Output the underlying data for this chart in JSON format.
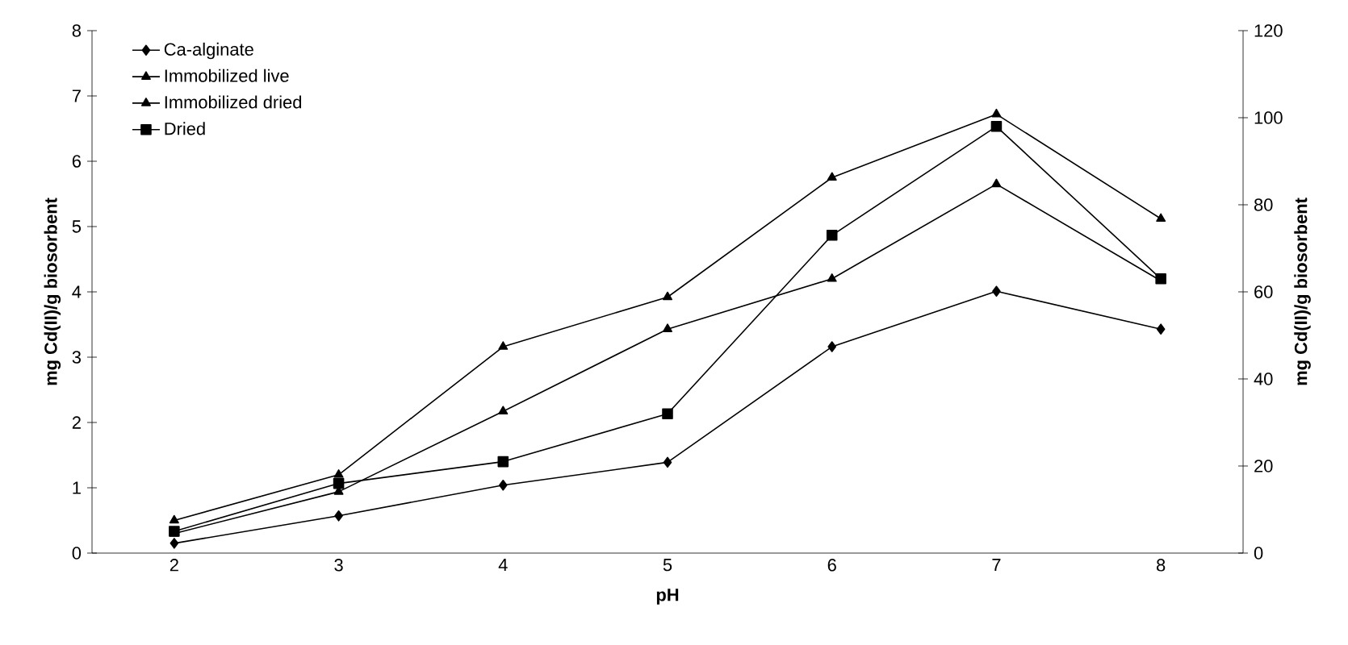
{
  "chart_data": {
    "type": "line",
    "xlabel": "pH",
    "ylabel": "mg Cd(II)/g biosorbent",
    "y2label": "mg Cd(II)/g biosorbent",
    "categories": [
      "2",
      "3",
      "4",
      "5",
      "6",
      "7",
      "8"
    ],
    "ylim": [
      0,
      8
    ],
    "yticks": [
      0,
      1,
      2,
      3,
      4,
      5,
      6,
      7,
      8
    ],
    "y2lim": [
      0,
      120
    ],
    "y2ticks": [
      0,
      20,
      40,
      60,
      80,
      100,
      120
    ],
    "legend": "top left",
    "grid": false,
    "line_style": "solid",
    "series": [
      {
        "name": "Ca-alginate",
        "color": "#000000",
        "marker": "diamond",
        "values": [
          0.15,
          0.57,
          1.04,
          1.39,
          3.16,
          4.01,
          3.43
        ]
      },
      {
        "name": "Immobilized live",
        "color": "#000000",
        "marker": "triangle",
        "values": [
          0.3,
          0.94,
          2.17,
          3.43,
          4.2,
          5.65,
          4.17
        ]
      },
      {
        "name": "Immobilized dried",
        "color": "#000000",
        "marker": "triangle",
        "values": [
          0.5,
          1.2,
          3.16,
          3.92,
          5.75,
          6.72,
          5.12
        ]
      },
      {
        "name": "Dried",
        "color": "#000000",
        "marker": "square",
        "axis": "y2",
        "values": [
          5,
          16,
          21,
          32,
          73,
          98,
          63
        ]
      }
    ]
  }
}
